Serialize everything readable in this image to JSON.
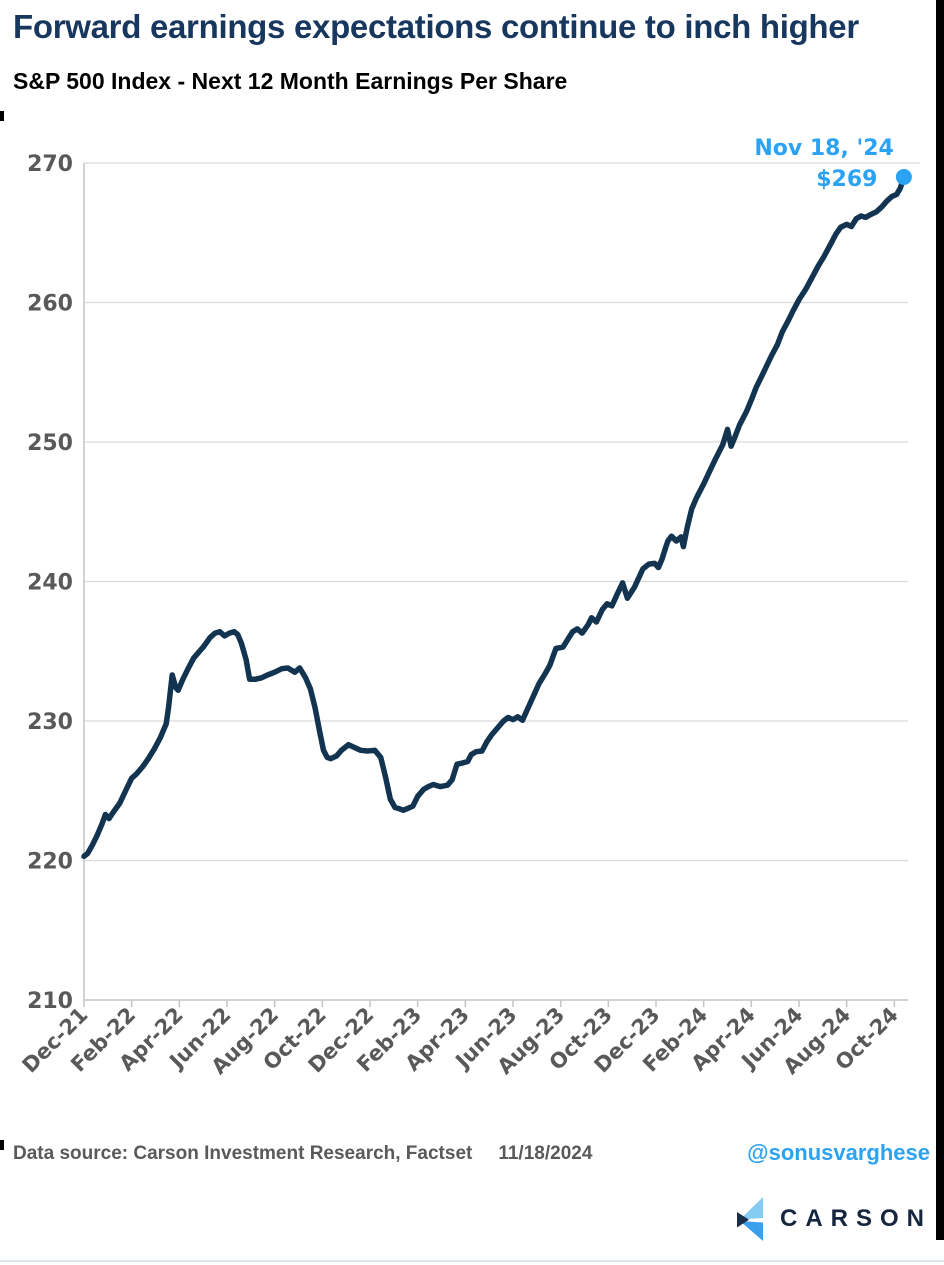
{
  "header": {
    "title": "Forward earnings expectations continue to inch higher",
    "subtitle": "S&P 500 Index - Next 12 Month Earnings Per Share"
  },
  "footer": {
    "source_label": "Data source: Carson Investment Research, Factset",
    "date": "11/18/2024",
    "handle": "@sonusvarghese",
    "logo_text": "CARSON",
    "logo_colors": {
      "top_wing": "#85ccf3",
      "bottom_wing": "#3aa0ee",
      "arrow": "#1b2e49",
      "text": "#15263e"
    }
  },
  "chart_data": {
    "type": "line",
    "title": "S&P 500 Index - Next 12 Month Earnings Per Share",
    "xlabel": "",
    "ylabel": "",
    "x_unit": "months since Dec-2021",
    "ylim": [
      210,
      270
    ],
    "y_ticks": [
      210,
      220,
      230,
      240,
      250,
      260,
      270
    ],
    "x_tick_positions": [
      0,
      2,
      4,
      6,
      8,
      10,
      12,
      14,
      16,
      18,
      20,
      22,
      24,
      26,
      28,
      30,
      32,
      34
    ],
    "x_tick_labels": [
      "Dec-21",
      "Feb-22",
      "Apr-22",
      "Jun-22",
      "Aug-22",
      "Oct-22",
      "Dec-22",
      "Feb-23",
      "Apr-23",
      "Jun-23",
      "Aug-23",
      "Oct-23",
      "Dec-23",
      "Feb-24",
      "Apr-24",
      "Jun-24",
      "Aug-24",
      "Oct-24"
    ],
    "grid": "horizontal",
    "legend": "none",
    "colors": {
      "line": "#123450",
      "accent_blue": "#2ba2f2",
      "grid": "#d9d9d9",
      "axis": "#c4c4c4",
      "tick_text": "#595959"
    },
    "end_point": {
      "label_line1": "Nov 18, '24",
      "label_line2": "$269",
      "m": 34.4,
      "value": 269.0
    },
    "series": [
      {
        "name": "S&P 500 Next 12 Month EPS",
        "points": [
          [
            0,
            220.3
          ],
          [
            0.15,
            220.5
          ],
          [
            0.35,
            221.1
          ],
          [
            0.55,
            221.8
          ],
          [
            0.75,
            222.6
          ],
          [
            0.9,
            223.3
          ],
          [
            1.05,
            223.0
          ],
          [
            1.2,
            223.4
          ],
          [
            1.5,
            224.1
          ],
          [
            1.8,
            225.2
          ],
          [
            2.0,
            225.9
          ],
          [
            2.2,
            226.2
          ],
          [
            2.45,
            226.7
          ],
          [
            2.7,
            227.3
          ],
          [
            2.95,
            228.0
          ],
          [
            3.2,
            228.8
          ],
          [
            3.45,
            229.8
          ],
          [
            3.55,
            231.0
          ],
          [
            3.7,
            233.3
          ],
          [
            3.85,
            232.4
          ],
          [
            3.95,
            232.2
          ],
          [
            4.15,
            233.0
          ],
          [
            4.35,
            233.7
          ],
          [
            4.6,
            234.5
          ],
          [
            4.8,
            234.9
          ],
          [
            5.0,
            235.3
          ],
          [
            5.3,
            236.0
          ],
          [
            5.5,
            236.3
          ],
          [
            5.7,
            236.4
          ],
          [
            5.9,
            236.1
          ],
          [
            6.1,
            236.3
          ],
          [
            6.3,
            236.4
          ],
          [
            6.45,
            236.2
          ],
          [
            6.6,
            235.6
          ],
          [
            6.8,
            234.4
          ],
          [
            6.95,
            233.0
          ],
          [
            7.2,
            233.0
          ],
          [
            7.45,
            233.1
          ],
          [
            7.7,
            233.3
          ],
          [
            8.0,
            233.5
          ],
          [
            8.3,
            233.75
          ],
          [
            8.55,
            233.8
          ],
          [
            8.85,
            233.5
          ],
          [
            9.05,
            233.8
          ],
          [
            9.3,
            233.1
          ],
          [
            9.5,
            232.3
          ],
          [
            9.7,
            230.9
          ],
          [
            9.88,
            229.3
          ],
          [
            10.05,
            227.9
          ],
          [
            10.2,
            227.4
          ],
          [
            10.35,
            227.3
          ],
          [
            10.6,
            227.5
          ],
          [
            10.8,
            227.9
          ],
          [
            11.1,
            228.3
          ],
          [
            11.35,
            228.1
          ],
          [
            11.6,
            227.9
          ],
          [
            11.9,
            227.85
          ],
          [
            12.2,
            227.9
          ],
          [
            12.45,
            227.4
          ],
          [
            12.65,
            226.0
          ],
          [
            12.85,
            224.4
          ],
          [
            13.05,
            223.8
          ],
          [
            13.25,
            223.7
          ],
          [
            13.4,
            223.6
          ],
          [
            13.6,
            223.75
          ],
          [
            13.8,
            223.9
          ],
          [
            14.0,
            224.6
          ],
          [
            14.25,
            225.1
          ],
          [
            14.45,
            225.3
          ],
          [
            14.65,
            225.45
          ],
          [
            14.95,
            225.3
          ],
          [
            15.25,
            225.4
          ],
          [
            15.45,
            225.8
          ],
          [
            15.65,
            226.9
          ],
          [
            15.9,
            227.0
          ],
          [
            16.1,
            227.1
          ],
          [
            16.25,
            227.6
          ],
          [
            16.45,
            227.8
          ],
          [
            16.7,
            227.85
          ],
          [
            16.9,
            228.5
          ],
          [
            17.1,
            229.0
          ],
          [
            17.35,
            229.5
          ],
          [
            17.6,
            230.0
          ],
          [
            17.8,
            230.25
          ],
          [
            18.0,
            230.1
          ],
          [
            18.2,
            230.3
          ],
          [
            18.4,
            230.05
          ],
          [
            18.7,
            231.2
          ],
          [
            19.1,
            232.7
          ],
          [
            19.35,
            233.4
          ],
          [
            19.55,
            234.0
          ],
          [
            19.8,
            235.2
          ],
          [
            20.1,
            235.3
          ],
          [
            20.5,
            236.4
          ],
          [
            20.7,
            236.6
          ],
          [
            20.9,
            236.3
          ],
          [
            21.15,
            236.9
          ],
          [
            21.3,
            237.4
          ],
          [
            21.5,
            237.1
          ],
          [
            21.75,
            238.0
          ],
          [
            21.95,
            238.4
          ],
          [
            22.15,
            238.25
          ],
          [
            22.4,
            239.2
          ],
          [
            22.6,
            239.9
          ],
          [
            22.8,
            238.8
          ],
          [
            23.1,
            239.6
          ],
          [
            23.45,
            240.9
          ],
          [
            23.7,
            241.25
          ],
          [
            23.95,
            241.3
          ],
          [
            24.1,
            241.0
          ],
          [
            24.25,
            241.6
          ],
          [
            24.4,
            242.4
          ],
          [
            24.5,
            242.9
          ],
          [
            24.65,
            243.25
          ],
          [
            24.85,
            242.9
          ],
          [
            25.05,
            243.2
          ],
          [
            25.15,
            242.5
          ],
          [
            25.3,
            243.8
          ],
          [
            25.5,
            245.2
          ],
          [
            25.7,
            246.0
          ],
          [
            26.0,
            247.0
          ],
          [
            26.25,
            247.9
          ],
          [
            26.5,
            248.8
          ],
          [
            26.8,
            249.8
          ],
          [
            27.0,
            250.9
          ],
          [
            27.15,
            249.7
          ],
          [
            27.3,
            250.3
          ],
          [
            27.5,
            251.2
          ],
          [
            27.8,
            252.2
          ],
          [
            28.0,
            253.0
          ],
          [
            28.2,
            253.9
          ],
          [
            28.4,
            254.6
          ],
          [
            28.6,
            255.3
          ],
          [
            28.85,
            256.2
          ],
          [
            29.1,
            257.0
          ],
          [
            29.3,
            257.9
          ],
          [
            29.55,
            258.7
          ],
          [
            29.75,
            259.4
          ],
          [
            30.0,
            260.2
          ],
          [
            30.3,
            261.0
          ],
          [
            30.55,
            261.8
          ],
          [
            30.8,
            262.6
          ],
          [
            31.05,
            263.3
          ],
          [
            31.3,
            264.1
          ],
          [
            31.55,
            264.9
          ],
          [
            31.75,
            265.4
          ],
          [
            32.0,
            265.6
          ],
          [
            32.2,
            265.45
          ],
          [
            32.4,
            266.0
          ],
          [
            32.6,
            266.2
          ],
          [
            32.8,
            266.1
          ],
          [
            33.0,
            266.3
          ],
          [
            33.25,
            266.5
          ],
          [
            33.5,
            266.9
          ],
          [
            33.7,
            267.3
          ],
          [
            33.9,
            267.6
          ],
          [
            34.1,
            267.75
          ],
          [
            34.25,
            268.2
          ],
          [
            34.4,
            269.0
          ]
        ]
      }
    ]
  }
}
